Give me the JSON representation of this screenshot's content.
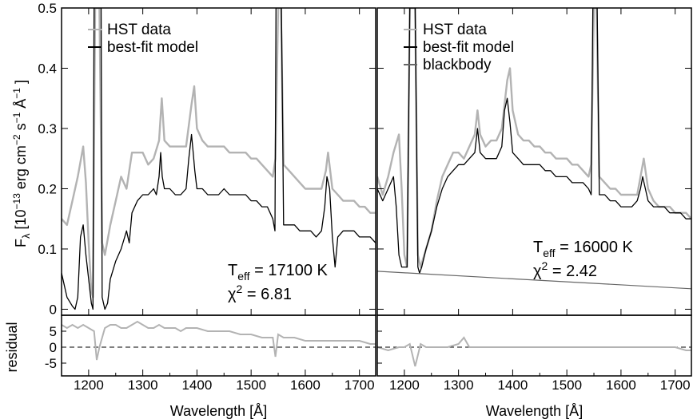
{
  "chart_data": {
    "type": "line",
    "ylabel_html": {
      "main": "F",
      "sub": "λ",
      "unit_open": " [10",
      "exp1": "−13",
      "mid1": " erg cm",
      "exp2": "−2",
      "mid2": " s",
      "exp3": "−1",
      "mid3": " Å",
      "exp4": "−1",
      "close": " ]"
    },
    "residual_ylabel": "residual",
    "xlabel": "Wavelength [Å]",
    "xlim": [
      1150,
      1730
    ],
    "xticks": [
      1200,
      1300,
      1400,
      1500,
      1600,
      1700
    ],
    "ylim": [
      -0.01,
      0.5
    ],
    "yticks": [
      "0",
      "0.1",
      "0.2",
      "0.3",
      "0.4",
      "0.5"
    ],
    "residual_ylim": [
      -9,
      10
    ],
    "residual_yticks": [
      "5",
      "0",
      "-5"
    ],
    "colors": {
      "data": "#b3b3b3",
      "model": "#000000",
      "blackbody": "#666666",
      "axis": "#000000"
    },
    "panels": [
      {
        "legend": [
          "HST data",
          "best-fit model"
        ],
        "teff_label": "T",
        "teff_sub": "eff",
        "teff_value": " = 17100 K",
        "chi_label": "χ",
        "chi_sup": "2",
        "chi_value": " = 6.81",
        "series": [
          {
            "name": "HST data",
            "x": [
              1150,
              1160,
              1170,
              1180,
              1190,
              1195,
              1200,
              1205,
              1208,
              1212,
              1215,
              1220,
              1225,
              1230,
              1240,
              1250,
              1260,
              1270,
              1280,
              1290,
              1300,
              1310,
              1320,
              1330,
              1335,
              1340,
              1350,
              1360,
              1370,
              1380,
              1390,
              1395,
              1400,
              1410,
              1420,
              1430,
              1440,
              1450,
              1460,
              1470,
              1480,
              1490,
              1500,
              1510,
              1520,
              1530,
              1540,
              1545,
              1550,
              1555,
              1560,
              1570,
              1580,
              1590,
              1600,
              1610,
              1620,
              1630,
              1638,
              1642,
              1650,
              1660,
              1670,
              1680,
              1690,
              1700,
              1710,
              1720,
              1730
            ],
            "y": [
              0.15,
              0.14,
              0.18,
              0.22,
              0.27,
              0.21,
              0.11,
              0.03,
              0.02,
              0.5,
              0.5,
              0.5,
              0.11,
              0.09,
              0.14,
              0.18,
              0.22,
              0.2,
              0.26,
              0.26,
              0.26,
              0.24,
              0.25,
              0.28,
              0.35,
              0.28,
              0.27,
              0.27,
              0.27,
              0.27,
              0.34,
              0.37,
              0.3,
              0.28,
              0.27,
              0.27,
              0.27,
              0.27,
              0.26,
              0.26,
              0.26,
              0.26,
              0.25,
              0.25,
              0.24,
              0.23,
              0.22,
              0.25,
              0.5,
              0.5,
              0.24,
              0.23,
              0.22,
              0.21,
              0.2,
              0.2,
              0.2,
              0.2,
              0.23,
              0.26,
              0.2,
              0.19,
              0.18,
              0.18,
              0.18,
              0.17,
              0.17,
              0.16,
              0.16
            ]
          },
          {
            "name": "best-fit model",
            "x": [
              1150,
              1160,
              1170,
              1175,
              1180,
              1185,
              1190,
              1195,
              1200,
              1205,
              1208,
              1210,
              1213,
              1215,
              1220,
              1223,
              1225,
              1230,
              1235,
              1240,
              1250,
              1260,
              1270,
              1275,
              1280,
              1290,
              1300,
              1310,
              1320,
              1325,
              1330,
              1333,
              1336,
              1340,
              1350,
              1360,
              1370,
              1380,
              1385,
              1390,
              1393,
              1396,
              1400,
              1410,
              1420,
              1430,
              1440,
              1450,
              1460,
              1470,
              1480,
              1490,
              1500,
              1510,
              1520,
              1530,
              1540,
              1544,
              1546,
              1549,
              1553,
              1556,
              1560,
              1570,
              1580,
              1590,
              1600,
              1610,
              1620,
              1630,
              1636,
              1640,
              1645,
              1650,
              1655,
              1660,
              1670,
              1680,
              1690,
              1700,
              1710,
              1720,
              1730
            ],
            "y": [
              0.06,
              0.02,
              0.005,
              0.0,
              0.02,
              0.12,
              0.14,
              0.09,
              0.05,
              0.01,
              0.0,
              0.5,
              0.5,
              0.5,
              0.5,
              0.5,
              0.02,
              0.0,
              0.01,
              0.05,
              0.08,
              0.1,
              0.13,
              0.11,
              0.16,
              0.18,
              0.19,
              0.19,
              0.2,
              0.19,
              0.22,
              0.26,
              0.22,
              0.2,
              0.2,
              0.19,
              0.19,
              0.2,
              0.25,
              0.29,
              0.26,
              0.23,
              0.2,
              0.2,
              0.19,
              0.19,
              0.19,
              0.2,
              0.19,
              0.19,
              0.19,
              0.19,
              0.18,
              0.18,
              0.17,
              0.17,
              0.15,
              0.13,
              0.5,
              0.5,
              0.5,
              0.5,
              0.14,
              0.14,
              0.14,
              0.13,
              0.13,
              0.13,
              0.12,
              0.13,
              0.17,
              0.22,
              0.2,
              0.12,
              0.07,
              0.12,
              0.13,
              0.13,
              0.13,
              0.12,
              0.12,
              0.12,
              0.11
            ]
          }
        ],
        "residual": {
          "x": [
            1150,
            1160,
            1170,
            1180,
            1190,
            1200,
            1210,
            1215,
            1220,
            1230,
            1240,
            1250,
            1260,
            1270,
            1280,
            1290,
            1300,
            1310,
            1320,
            1330,
            1340,
            1350,
            1360,
            1370,
            1380,
            1390,
            1400,
            1420,
            1440,
            1460,
            1480,
            1500,
            1520,
            1540,
            1545,
            1550,
            1560,
            1580,
            1600,
            1620,
            1640,
            1660,
            1680,
            1700,
            1720,
            1730
          ],
          "y": [
            7,
            6,
            7,
            6,
            7,
            6,
            5,
            -4,
            0,
            6,
            7,
            7,
            6,
            6,
            7,
            8,
            7,
            6,
            6,
            7,
            6,
            6,
            6,
            5,
            6,
            6,
            6,
            5,
            5,
            5,
            4,
            4,
            3,
            3,
            -3,
            4,
            3,
            3,
            2,
            2,
            2,
            2,
            2,
            2,
            1,
            1
          ]
        }
      },
      {
        "legend": [
          "HST data",
          "best-fit model",
          "blackbody"
        ],
        "teff_label": "T",
        "teff_sub": "eff",
        "teff_value": " = 16000 K",
        "chi_label": "χ",
        "chi_sup": "2",
        "chi_value": " = 2.42",
        "series": [
          {
            "name": "HST data",
            "x": [
              1150,
              1160,
              1170,
              1180,
              1190,
              1195,
              1200,
              1205,
              1210,
              1215,
              1220,
              1225,
              1230,
              1240,
              1250,
              1260,
              1270,
              1280,
              1290,
              1300,
              1310,
              1320,
              1330,
              1335,
              1340,
              1350,
              1360,
              1370,
              1380,
              1390,
              1395,
              1400,
              1410,
              1420,
              1430,
              1440,
              1450,
              1460,
              1470,
              1480,
              1490,
              1500,
              1510,
              1520,
              1530,
              1540,
              1545,
              1550,
              1555,
              1560,
              1570,
              1580,
              1590,
              1600,
              1610,
              1620,
              1630,
              1638,
              1642,
              1650,
              1660,
              1670,
              1680,
              1690,
              1700,
              1710,
              1720,
              1730
            ],
            "y": [
              0.22,
              0.19,
              0.22,
              0.26,
              0.29,
              0.2,
              0.09,
              0.07,
              0.5,
              0.5,
              0.5,
              0.09,
              0.07,
              0.1,
              0.13,
              0.18,
              0.22,
              0.24,
              0.26,
              0.26,
              0.25,
              0.27,
              0.29,
              0.33,
              0.29,
              0.27,
              0.28,
              0.28,
              0.3,
              0.38,
              0.4,
              0.33,
              0.29,
              0.28,
              0.28,
              0.27,
              0.27,
              0.26,
              0.26,
              0.25,
              0.25,
              0.25,
              0.24,
              0.24,
              0.23,
              0.22,
              0.24,
              0.5,
              0.5,
              0.22,
              0.21,
              0.2,
              0.2,
              0.19,
              0.19,
              0.19,
              0.19,
              0.23,
              0.25,
              0.2,
              0.18,
              0.17,
              0.17,
              0.17,
              0.16,
              0.16,
              0.16,
              0.15
            ]
          },
          {
            "name": "best-fit model",
            "x": [
              1150,
              1160,
              1170,
              1180,
              1185,
              1190,
              1195,
              1200,
              1205,
              1210,
              1213,
              1216,
              1220,
              1225,
              1228,
              1232,
              1240,
              1250,
              1260,
              1270,
              1280,
              1290,
              1300,
              1310,
              1320,
              1330,
              1335,
              1340,
              1350,
              1360,
              1370,
              1380,
              1385,
              1390,
              1395,
              1400,
              1410,
              1420,
              1430,
              1440,
              1450,
              1460,
              1470,
              1480,
              1490,
              1500,
              1510,
              1520,
              1530,
              1540,
              1545,
              1548,
              1552,
              1556,
              1560,
              1570,
              1580,
              1590,
              1600,
              1610,
              1620,
              1630,
              1636,
              1640,
              1645,
              1650,
              1660,
              1670,
              1680,
              1690,
              1700,
              1710,
              1720,
              1730
            ],
            "y": [
              0.2,
              0.18,
              0.2,
              0.22,
              0.17,
              0.09,
              0.07,
              0.07,
              0.07,
              0.5,
              0.5,
              0.5,
              0.5,
              0.07,
              0.06,
              0.07,
              0.1,
              0.13,
              0.17,
              0.2,
              0.22,
              0.23,
              0.24,
              0.24,
              0.25,
              0.26,
              0.3,
              0.26,
              0.25,
              0.25,
              0.25,
              0.27,
              0.33,
              0.35,
              0.31,
              0.26,
              0.25,
              0.24,
              0.24,
              0.24,
              0.24,
              0.23,
              0.23,
              0.22,
              0.22,
              0.22,
              0.21,
              0.21,
              0.21,
              0.2,
              0.19,
              0.5,
              0.5,
              0.5,
              0.19,
              0.19,
              0.18,
              0.18,
              0.17,
              0.17,
              0.17,
              0.18,
              0.2,
              0.22,
              0.2,
              0.18,
              0.17,
              0.17,
              0.17,
              0.16,
              0.16,
              0.16,
              0.15,
              0.15
            ]
          },
          {
            "name": "blackbody",
            "x": [
              1150,
              1730
            ],
            "y": [
              0.063,
              0.034
            ]
          }
        ],
        "residual": {
          "x": [
            1150,
            1170,
            1190,
            1200,
            1210,
            1220,
            1230,
            1240,
            1260,
            1280,
            1300,
            1310,
            1320,
            1340,
            1360,
            1380,
            1400,
            1420,
            1440,
            1460,
            1480,
            1500,
            1520,
            1540,
            1560,
            1580,
            1600,
            1620,
            1640,
            1660,
            1680,
            1700,
            1720,
            1730
          ],
          "y": [
            0,
            -1,
            0,
            0,
            1,
            -6,
            1,
            0,
            0,
            0,
            1,
            3,
            0,
            0,
            0,
            0,
            0,
            0,
            0,
            0,
            0,
            0,
            0,
            0,
            0,
            0,
            0,
            0,
            0,
            0,
            0,
            0,
            -1,
            -1
          ]
        }
      }
    ]
  }
}
